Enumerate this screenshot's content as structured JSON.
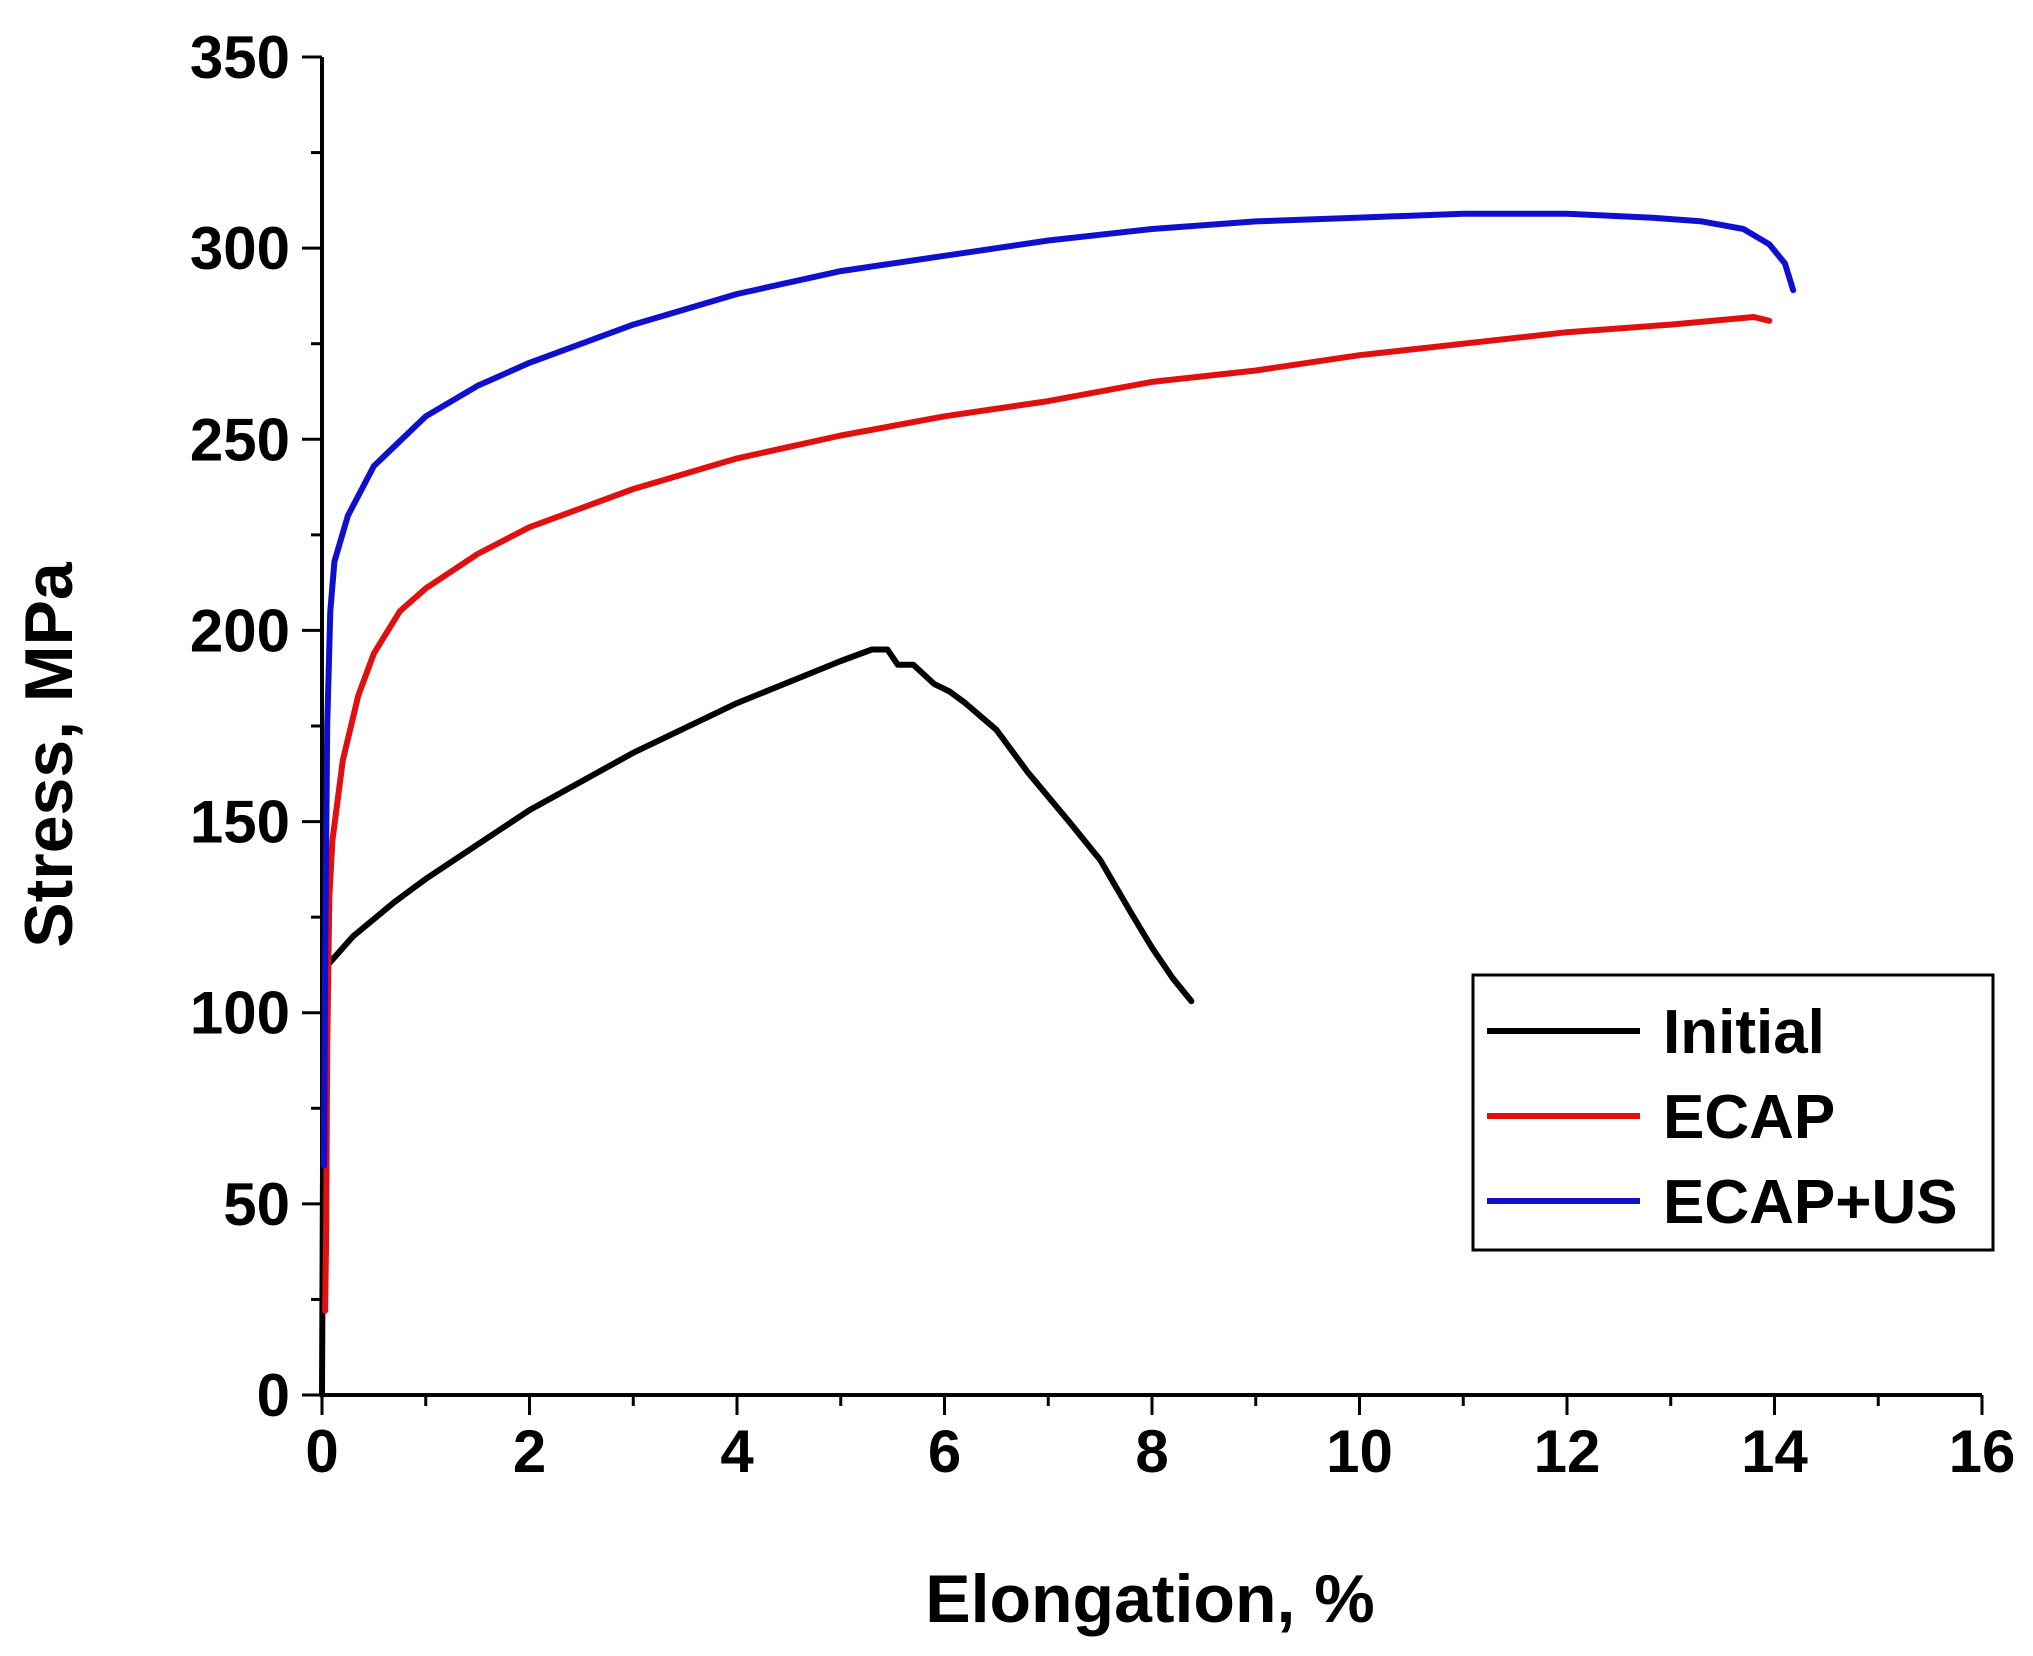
{
  "chart_data": {
    "type": "line",
    "title": "",
    "xlabel": "Elongation, %",
    "ylabel": "Stress, MPa",
    "xlim": [
      0,
      16
    ],
    "ylim": [
      0,
      350
    ],
    "x_ticks": [
      "0",
      "2",
      "4",
      "6",
      "8",
      "10",
      "12",
      "14",
      "16"
    ],
    "y_ticks": [
      "0",
      "50",
      "100",
      "150",
      "200",
      "250",
      "300",
      "350"
    ],
    "legend_position": "bottom-right",
    "grid": false,
    "series": [
      {
        "name": "Initial",
        "color": "#000000",
        "points": [
          [
            0,
            0
          ],
          [
            0.01,
            60
          ],
          [
            0.02,
            100
          ],
          [
            0.04,
            112
          ],
          [
            0.3,
            120
          ],
          [
            0.7,
            129
          ],
          [
            1,
            135
          ],
          [
            2,
            153
          ],
          [
            3,
            168
          ],
          [
            4,
            181
          ],
          [
            5,
            192
          ],
          [
            5.3,
            195
          ],
          [
            5.45,
            195
          ],
          [
            5.55,
            191
          ],
          [
            5.7,
            191
          ],
          [
            5.9,
            186
          ],
          [
            6.05,
            184
          ],
          [
            6.2,
            181
          ],
          [
            6.5,
            174
          ],
          [
            6.8,
            163
          ],
          [
            7.2,
            150
          ],
          [
            7.5,
            140
          ],
          [
            7.8,
            126
          ],
          [
            8.0,
            117
          ],
          [
            8.2,
            109
          ],
          [
            8.38,
            103
          ]
        ]
      },
      {
        "name": "ECAP",
        "color": "#e01010",
        "points": [
          [
            0.03,
            22
          ],
          [
            0.04,
            40
          ],
          [
            0.05,
            90
          ],
          [
            0.07,
            130
          ],
          [
            0.1,
            145
          ],
          [
            0.2,
            166
          ],
          [
            0.35,
            183
          ],
          [
            0.5,
            194
          ],
          [
            0.75,
            205
          ],
          [
            1,
            211
          ],
          [
            1.5,
            220
          ],
          [
            2,
            227
          ],
          [
            3,
            237
          ],
          [
            4,
            245
          ],
          [
            5,
            251
          ],
          [
            6,
            256
          ],
          [
            7,
            260
          ],
          [
            8,
            265
          ],
          [
            9,
            268
          ],
          [
            10,
            272
          ],
          [
            11,
            275
          ],
          [
            12,
            278
          ],
          [
            13,
            280
          ],
          [
            13.8,
            282
          ],
          [
            13.95,
            281
          ]
        ]
      },
      {
        "name": "ECAP+US",
        "color": "#1010cc",
        "points": [
          [
            0.02,
            60
          ],
          [
            0.03,
            110
          ],
          [
            0.05,
            175
          ],
          [
            0.08,
            205
          ],
          [
            0.12,
            218
          ],
          [
            0.25,
            230
          ],
          [
            0.5,
            243
          ],
          [
            1,
            256
          ],
          [
            1.5,
            264
          ],
          [
            2,
            270
          ],
          [
            3,
            280
          ],
          [
            4,
            288
          ],
          [
            5,
            294
          ],
          [
            6,
            298
          ],
          [
            7,
            302
          ],
          [
            8,
            305
          ],
          [
            9,
            307
          ],
          [
            10,
            308
          ],
          [
            11,
            309
          ],
          [
            12,
            309
          ],
          [
            12.8,
            308
          ],
          [
            13.3,
            307
          ],
          [
            13.7,
            305
          ],
          [
            13.95,
            301
          ],
          [
            14.1,
            296
          ],
          [
            14.18,
            289
          ]
        ]
      }
    ]
  }
}
